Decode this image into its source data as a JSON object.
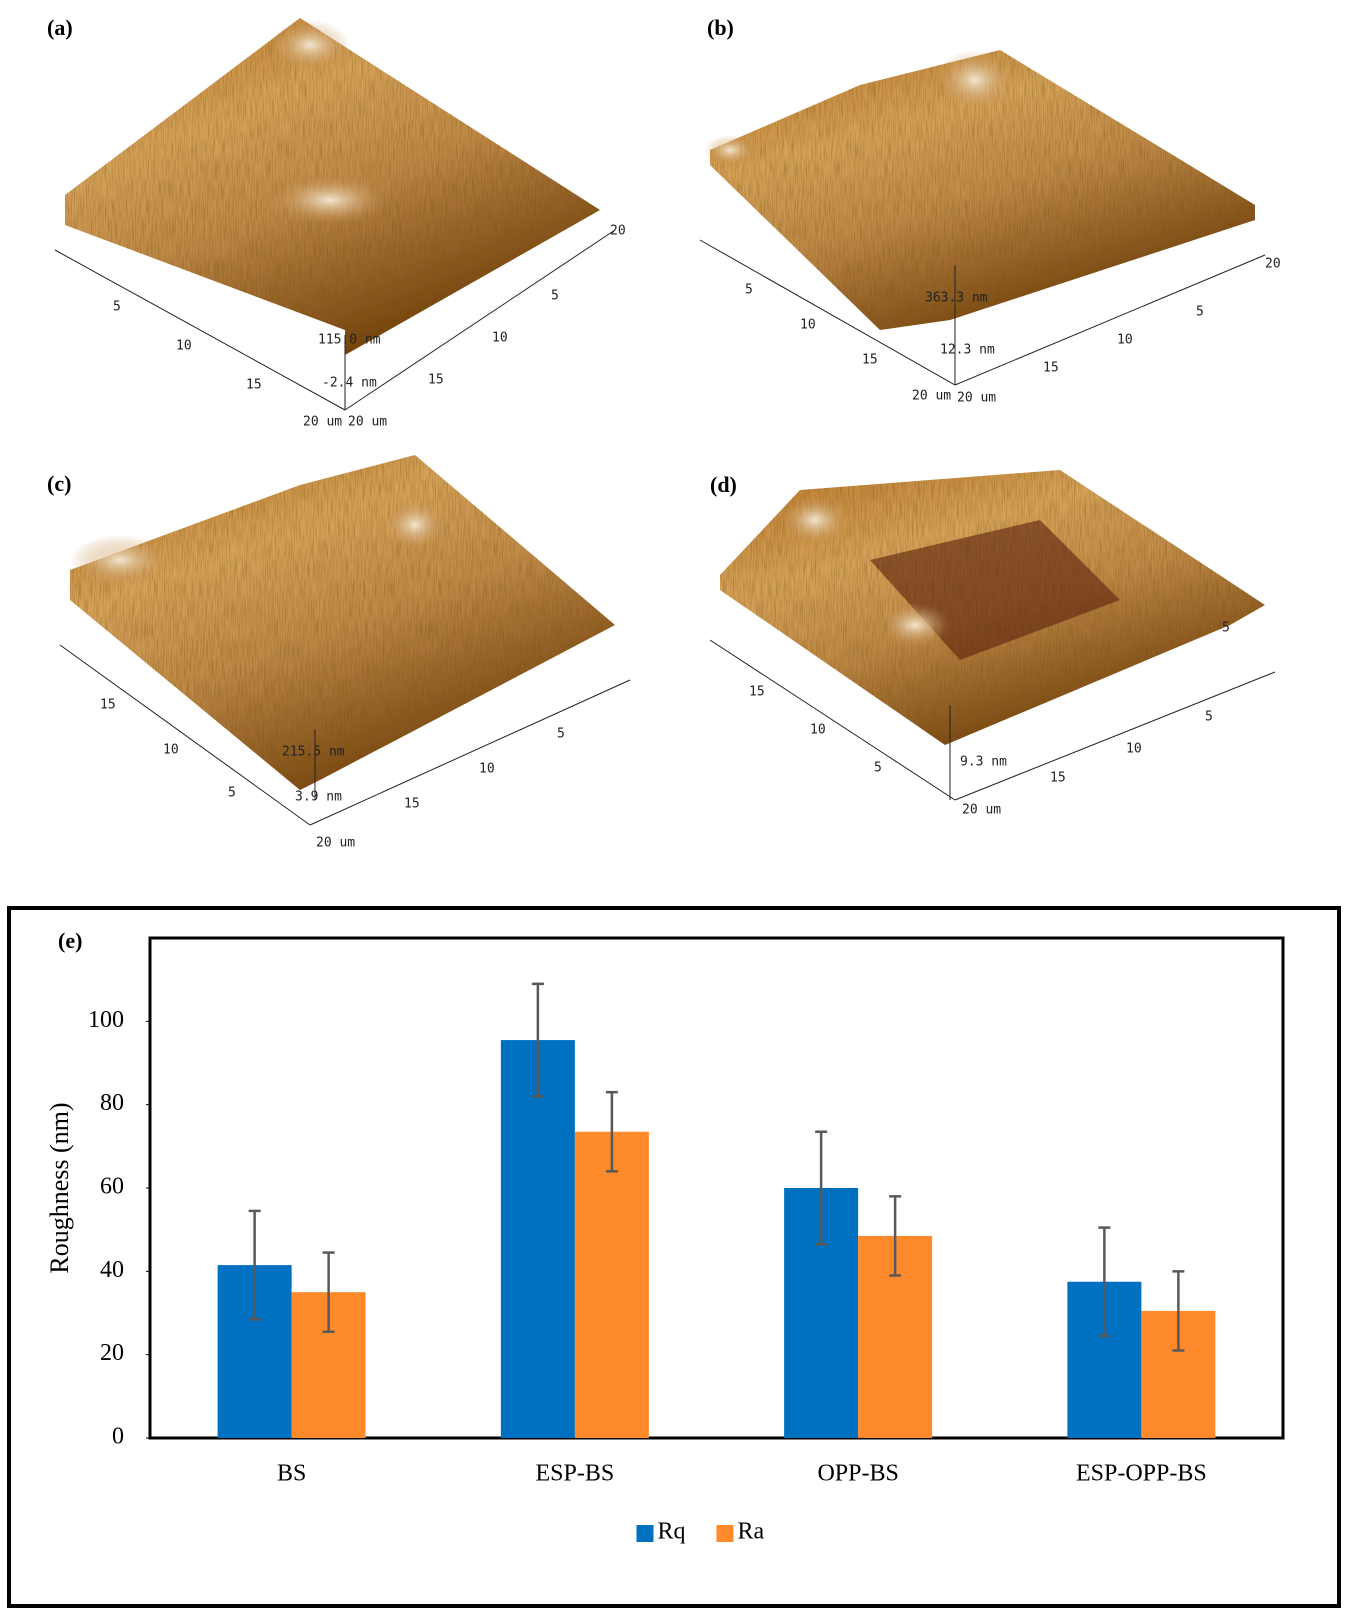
{
  "afm_panels": [
    {
      "label": "(a)",
      "texts": [
        "5",
        "10",
        "15",
        "20 um",
        "20 um",
        "15",
        "10",
        "5",
        "20",
        "115.0 nm",
        "-2.4 nm"
      ]
    },
    {
      "label": "(b)",
      "texts": [
        "5",
        "10",
        "15",
        "20 um",
        "20 um",
        "15",
        "10",
        "5",
        "20",
        "363.3 nm",
        "12.3 nm"
      ]
    },
    {
      "label": "(c)",
      "texts": [
        "15",
        "10",
        "5",
        "20 um",
        "15",
        "10",
        "5",
        "215.5 nm",
        "3.9 nm"
      ]
    },
    {
      "label": "(d)",
      "texts": [
        "15",
        "10",
        "5",
        "20 um",
        "15",
        "10",
        "5",
        "5",
        "9.3 nm"
      ]
    }
  ],
  "chart_data": {
    "type": "bar",
    "label": "(e)",
    "y_label": "Roughness (nm)",
    "categories": [
      "BS",
      "ESP-BS",
      "OPP-BS",
      "ESP-OPP-BS"
    ],
    "series": [
      {
        "name": "Rq",
        "color": "#0070c0",
        "values": [
          41.5,
          95.5,
          60,
          37.5
        ],
        "errors": [
          13,
          13.5,
          13.5,
          13
        ]
      },
      {
        "name": "Ra",
        "color": "#ff8a2b",
        "values": [
          35,
          73.5,
          48.5,
          30.5
        ],
        "errors": [
          9.5,
          9.5,
          9.5,
          9.5
        ]
      }
    ],
    "ylim": [
      0,
      120
    ],
    "yticks": [
      0,
      20,
      40,
      60,
      80,
      100
    ],
    "legend": "bottom"
  }
}
